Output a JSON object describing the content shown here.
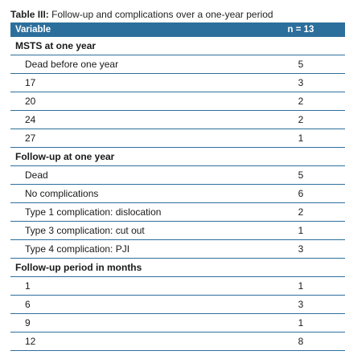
{
  "table": {
    "caption_prefix": "Table III:",
    "caption_text": " Follow-up and complications over a one-year period",
    "header": {
      "variable": "Variable",
      "n": "n = 13"
    },
    "sections": [
      {
        "title": "MSTS at one year",
        "rows": [
          {
            "label": "Dead before one year",
            "value": "5"
          },
          {
            "label": "17",
            "value": "3"
          },
          {
            "label": "20",
            "value": "2"
          },
          {
            "label": "24",
            "value": "2"
          },
          {
            "label": "27",
            "value": "1"
          }
        ]
      },
      {
        "title": "Follow-up at one year",
        "rows": [
          {
            "label": "Dead",
            "value": "5"
          },
          {
            "label": "No complications",
            "value": "6"
          },
          {
            "label": "Type 1 complication: dislocation",
            "value": "2"
          },
          {
            "label": "Type 3 complication: cut out",
            "value": "1"
          },
          {
            "label": "Type 4 complication: PJI",
            "value": "3"
          }
        ]
      },
      {
        "title": "Follow-up period in months",
        "rows": [
          {
            "label": "1",
            "value": "1"
          },
          {
            "label": "6",
            "value": "3"
          },
          {
            "label": "9",
            "value": "1"
          },
          {
            "label": "12",
            "value": "8"
          }
        ]
      }
    ]
  }
}
